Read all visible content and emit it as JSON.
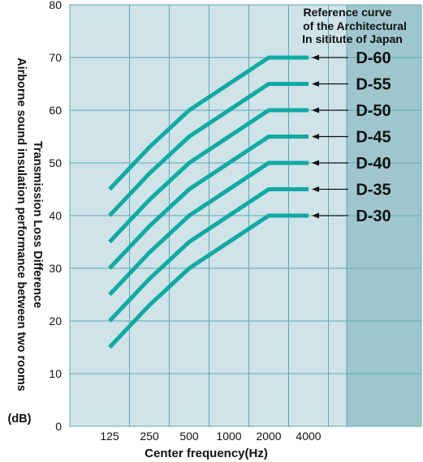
{
  "chart_data": {
    "type": "line",
    "x": [
      "125",
      "250",
      "500",
      "1000",
      "2000",
      "4000"
    ],
    "xlabel": "Center frequency(Hz)",
    "ylabel_lines": [
      "Airborne sound insulation performance between two rooms",
      "Transmission Loss Difference",
      "(dB)"
    ],
    "ylim": [
      0,
      80
    ],
    "yticks": [
      0,
      10,
      20,
      30,
      40,
      50,
      60,
      70,
      80
    ],
    "grid": true,
    "annotation_lines": [
      "Reference curve",
      "of the Architectural",
      "In sititute of Japan"
    ],
    "series": [
      {
        "name": "D-60",
        "values": [
          45,
          53,
          60,
          65,
          70,
          70
        ]
      },
      {
        "name": "D-55",
        "values": [
          40,
          48,
          55,
          60,
          65,
          65
        ]
      },
      {
        "name": "D-50",
        "values": [
          35,
          43,
          50,
          55,
          60,
          60
        ]
      },
      {
        "name": "D-45",
        "values": [
          30,
          38,
          45,
          50,
          55,
          55
        ]
      },
      {
        "name": "D-40",
        "values": [
          25,
          33,
          40,
          45,
          50,
          50
        ]
      },
      {
        "name": "D-35",
        "values": [
          20,
          28,
          35,
          40,
          45,
          45
        ]
      },
      {
        "name": "D-30",
        "values": [
          15,
          23,
          30,
          35,
          40,
          40
        ]
      }
    ],
    "colors": {
      "plot_bg": "#cfe3e8",
      "right_band": "#9fc6cd",
      "grid": "#5aaab6",
      "line": "#11a9a3"
    }
  }
}
